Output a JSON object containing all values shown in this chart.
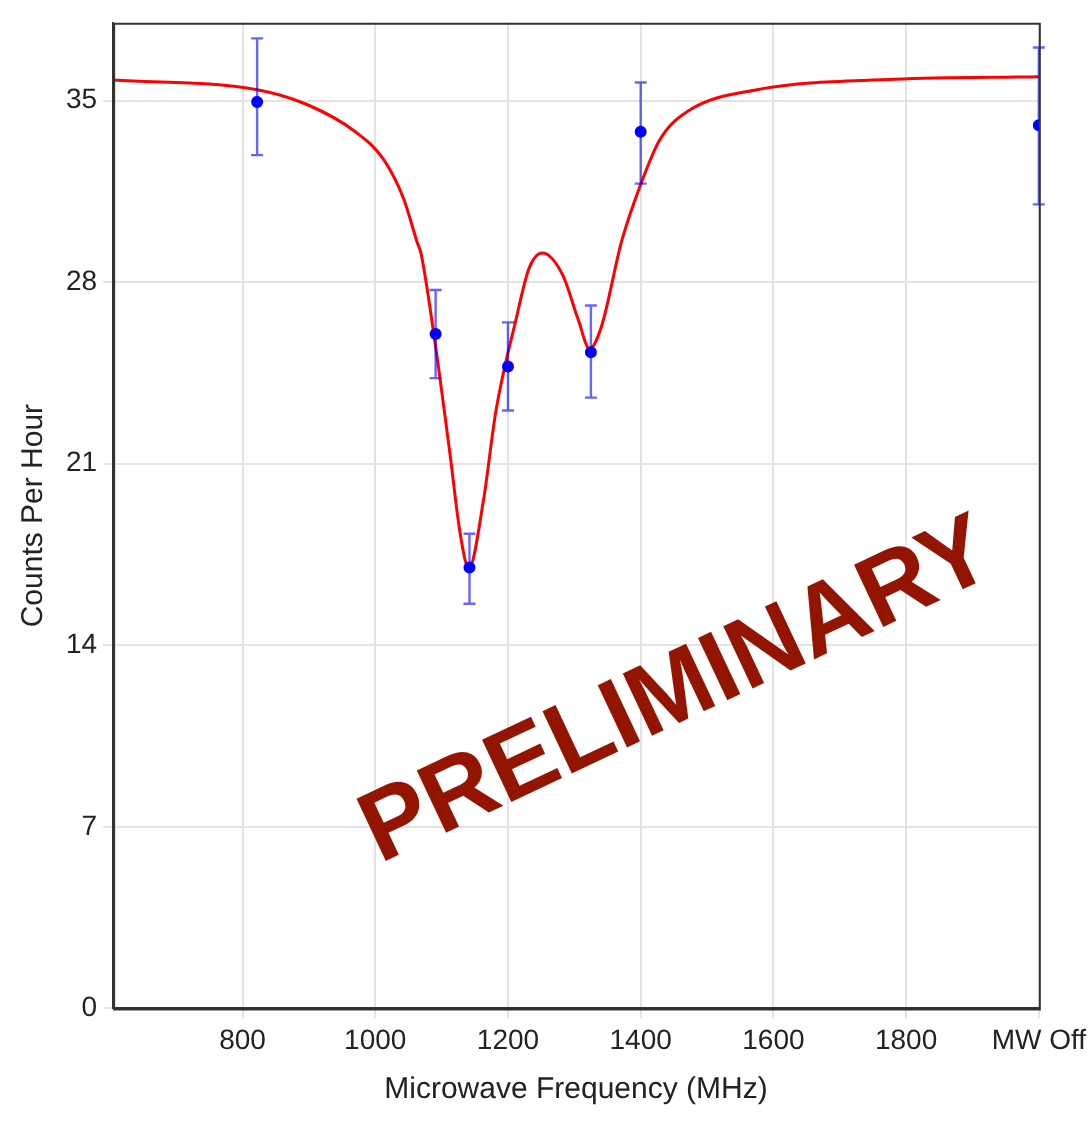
{
  "chart_data": {
    "type": "scatter",
    "xlabel": "Microwave Frequency (MHz)",
    "ylabel": "Counts Per Hour",
    "xlim": [
      605,
      2000
    ],
    "xticks": [
      800,
      1000,
      1200,
      1400,
      1600,
      1800,
      {
        "value": 2000,
        "label": "MW Off"
      }
    ],
    "ylim": [
      0,
      38
    ],
    "yticks": [
      0,
      7,
      14,
      21,
      28,
      35
    ],
    "grid": true,
    "legend": false,
    "annotations": [
      "PRELIMINARY"
    ],
    "series": [
      {
        "type": "line",
        "color": "#ff0000",
        "marker": "none",
        "line_style": "solid",
        "x": [
          605,
          822,
          897,
          970,
          1012,
          1043,
          1063,
          1069,
          1088,
          1113,
          1128,
          1141,
          1163,
          1182,
          1212,
          1232,
          1252,
          1282,
          1306,
          1323,
          1341,
          1371,
          1399,
          1429,
          1471,
          1575,
          1783,
          2000
        ],
        "values": [
          35.79,
          35.42,
          34.85,
          33.8,
          32.75,
          31.2,
          29.55,
          29.1,
          26.05,
          21.3,
          18.3,
          16.97,
          19.58,
          23.06,
          26.55,
          28.55,
          29.12,
          28.3,
          26.55,
          25.43,
          26.3,
          29.55,
          31.7,
          33.5,
          34.59,
          35.42,
          35.82,
          35.92
        ]
      },
      {
        "type": "scatter",
        "color": "#0000ff",
        "marker": "circle",
        "x": [
          822,
          1091,
          1142,
          1200,
          1325,
          1400,
          2000
        ],
        "values": [
          34.95,
          26.0,
          17.0,
          24.75,
          25.3,
          33.8,
          34.05
        ],
        "errors": [
          [
            32.9,
            37.4
          ],
          [
            24.3,
            27.7
          ],
          [
            15.6,
            18.3
          ],
          [
            23.05,
            26.45
          ],
          [
            23.55,
            27.1
          ],
          [
            31.8,
            35.7
          ],
          [
            31.0,
            37.05
          ]
        ]
      }
    ]
  }
}
